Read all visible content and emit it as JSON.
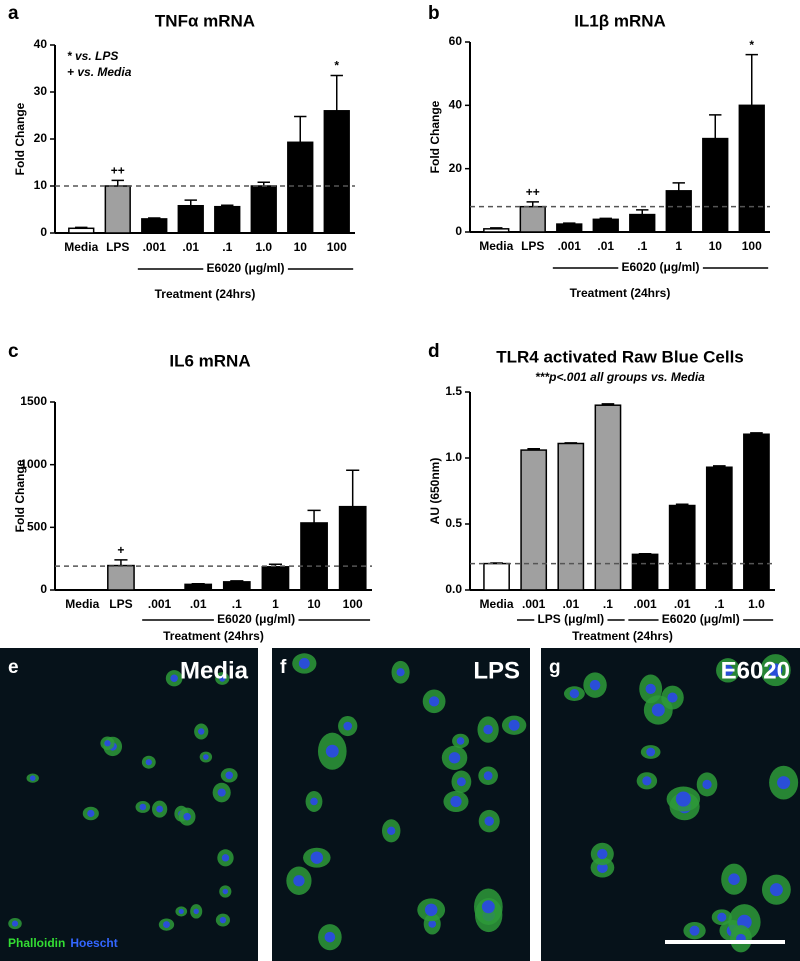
{
  "chart_data": [
    {
      "type": "bar",
      "panel": "a",
      "title": "TNFα mRNA",
      "y_label": "Fold Change",
      "x_label": "Treatment (24hrs)",
      "annotations": [
        "* vs. LPS",
        "+ vs. Media"
      ],
      "categories": [
        "Media",
        "LPS",
        ".001",
        ".01",
        ".1",
        "1.0",
        "10",
        "100"
      ],
      "values": [
        1,
        10,
        3,
        5.8,
        5.6,
        10,
        19.3,
        26
      ],
      "errors": [
        0.2,
        1.2,
        0.2,
        1.2,
        0.3,
        0.8,
        5.5,
        7.5
      ],
      "bar_labels": [
        null,
        "++",
        null,
        null,
        null,
        null,
        null,
        "*"
      ],
      "colors": [
        "#ffffff",
        "#a0a0a0",
        "#000000",
        "#000000",
        "#000000",
        "#000000",
        "#000000",
        "#000000"
      ],
      "groups": [
        {
          "label": "E6020 (μg/ml)",
          "span": [
            2,
            7
          ]
        }
      ],
      "reference_line": 10,
      "ylim": [
        0,
        40
      ],
      "yticks": [
        0,
        10,
        20,
        30,
        40
      ]
    },
    {
      "type": "bar",
      "panel": "b",
      "title": "IL1β mRNA",
      "y_label": "Fold Change",
      "x_label": "Treatment (24hrs)",
      "categories": [
        "Media",
        "LPS",
        ".001",
        ".01",
        ".1",
        "1",
        "10",
        "100"
      ],
      "values": [
        1,
        8,
        2.5,
        4,
        5.5,
        13,
        29.5,
        40
      ],
      "errors": [
        0.3,
        1.5,
        0.3,
        0.3,
        1.5,
        2.5,
        7.5,
        16
      ],
      "bar_labels": [
        null,
        "++",
        null,
        null,
        null,
        null,
        null,
        "*"
      ],
      "colors": [
        "#ffffff",
        "#a0a0a0",
        "#000000",
        "#000000",
        "#000000",
        "#000000",
        "#000000",
        "#000000"
      ],
      "groups": [
        {
          "label": "E6020 (μg/ml)",
          "span": [
            2,
            7
          ]
        }
      ],
      "reference_line": 8,
      "ylim": [
        0,
        60
      ],
      "yticks": [
        0,
        20,
        40,
        60
      ]
    },
    {
      "type": "bar",
      "panel": "c",
      "title": "IL6 mRNA",
      "y_label": "Fold Change",
      "x_label": "Treatment (24hrs)",
      "categories": [
        "Media",
        "LPS",
        ".001",
        ".01",
        ".1",
        "1",
        "10",
        "100"
      ],
      "values": [
        2,
        195,
        2,
        45,
        65,
        185,
        535,
        665
      ],
      "errors": [
        0,
        45,
        0,
        5,
        8,
        20,
        100,
        290
      ],
      "bar_labels": [
        null,
        "+",
        null,
        null,
        null,
        null,
        null,
        null
      ],
      "colors": [
        "#ffffff",
        "#a0a0a0",
        "#000000",
        "#000000",
        "#000000",
        "#000000",
        "#000000",
        "#000000"
      ],
      "groups": [
        {
          "label": "E6020 (μg/ml)",
          "span": [
            2,
            7
          ]
        }
      ],
      "reference_line": 190,
      "ylim": [
        0,
        1500
      ],
      "yticks": [
        0,
        500,
        1000,
        1500
      ]
    },
    {
      "type": "bar",
      "panel": "d",
      "title": "TLR4 activated Raw Blue Cells",
      "subtitle": "***p<.001 all groups vs. Media",
      "y_label": "AU (650nm)",
      "x_label": "Treatment (24hrs)",
      "categories": [
        "Media",
        ".001",
        ".01",
        ".1",
        ".001",
        ".01",
        ".1",
        "1.0"
      ],
      "values": [
        0.2,
        1.06,
        1.11,
        1.4,
        0.27,
        0.64,
        0.93,
        1.18
      ],
      "errors": [
        0.005,
        0.01,
        0.005,
        0.01,
        0.005,
        0.01,
        0.01,
        0.01
      ],
      "colors": [
        "#ffffff",
        "#a0a0a0",
        "#a0a0a0",
        "#a0a0a0",
        "#000000",
        "#000000",
        "#000000",
        "#000000"
      ],
      "groups": [
        {
          "label": "LPS (μg/ml)",
          "span": [
            1,
            3
          ]
        },
        {
          "label": "E6020 (μg/ml)",
          "span": [
            4,
            7
          ]
        }
      ],
      "reference_line": 0.2,
      "ylim": [
        0,
        1.5
      ],
      "yticks": [
        {
          "value": 0,
          "label": "0.0"
        },
        0.5,
        {
          "value": 1,
          "label": "1.0"
        },
        1.5
      ]
    }
  ],
  "images": [
    {
      "panel": "e",
      "label": "Media"
    },
    {
      "panel": "f",
      "label": "LPS"
    },
    {
      "panel": "g",
      "label": "E6020"
    }
  ],
  "stains": [
    "Phalloidin",
    "Hoescht"
  ]
}
